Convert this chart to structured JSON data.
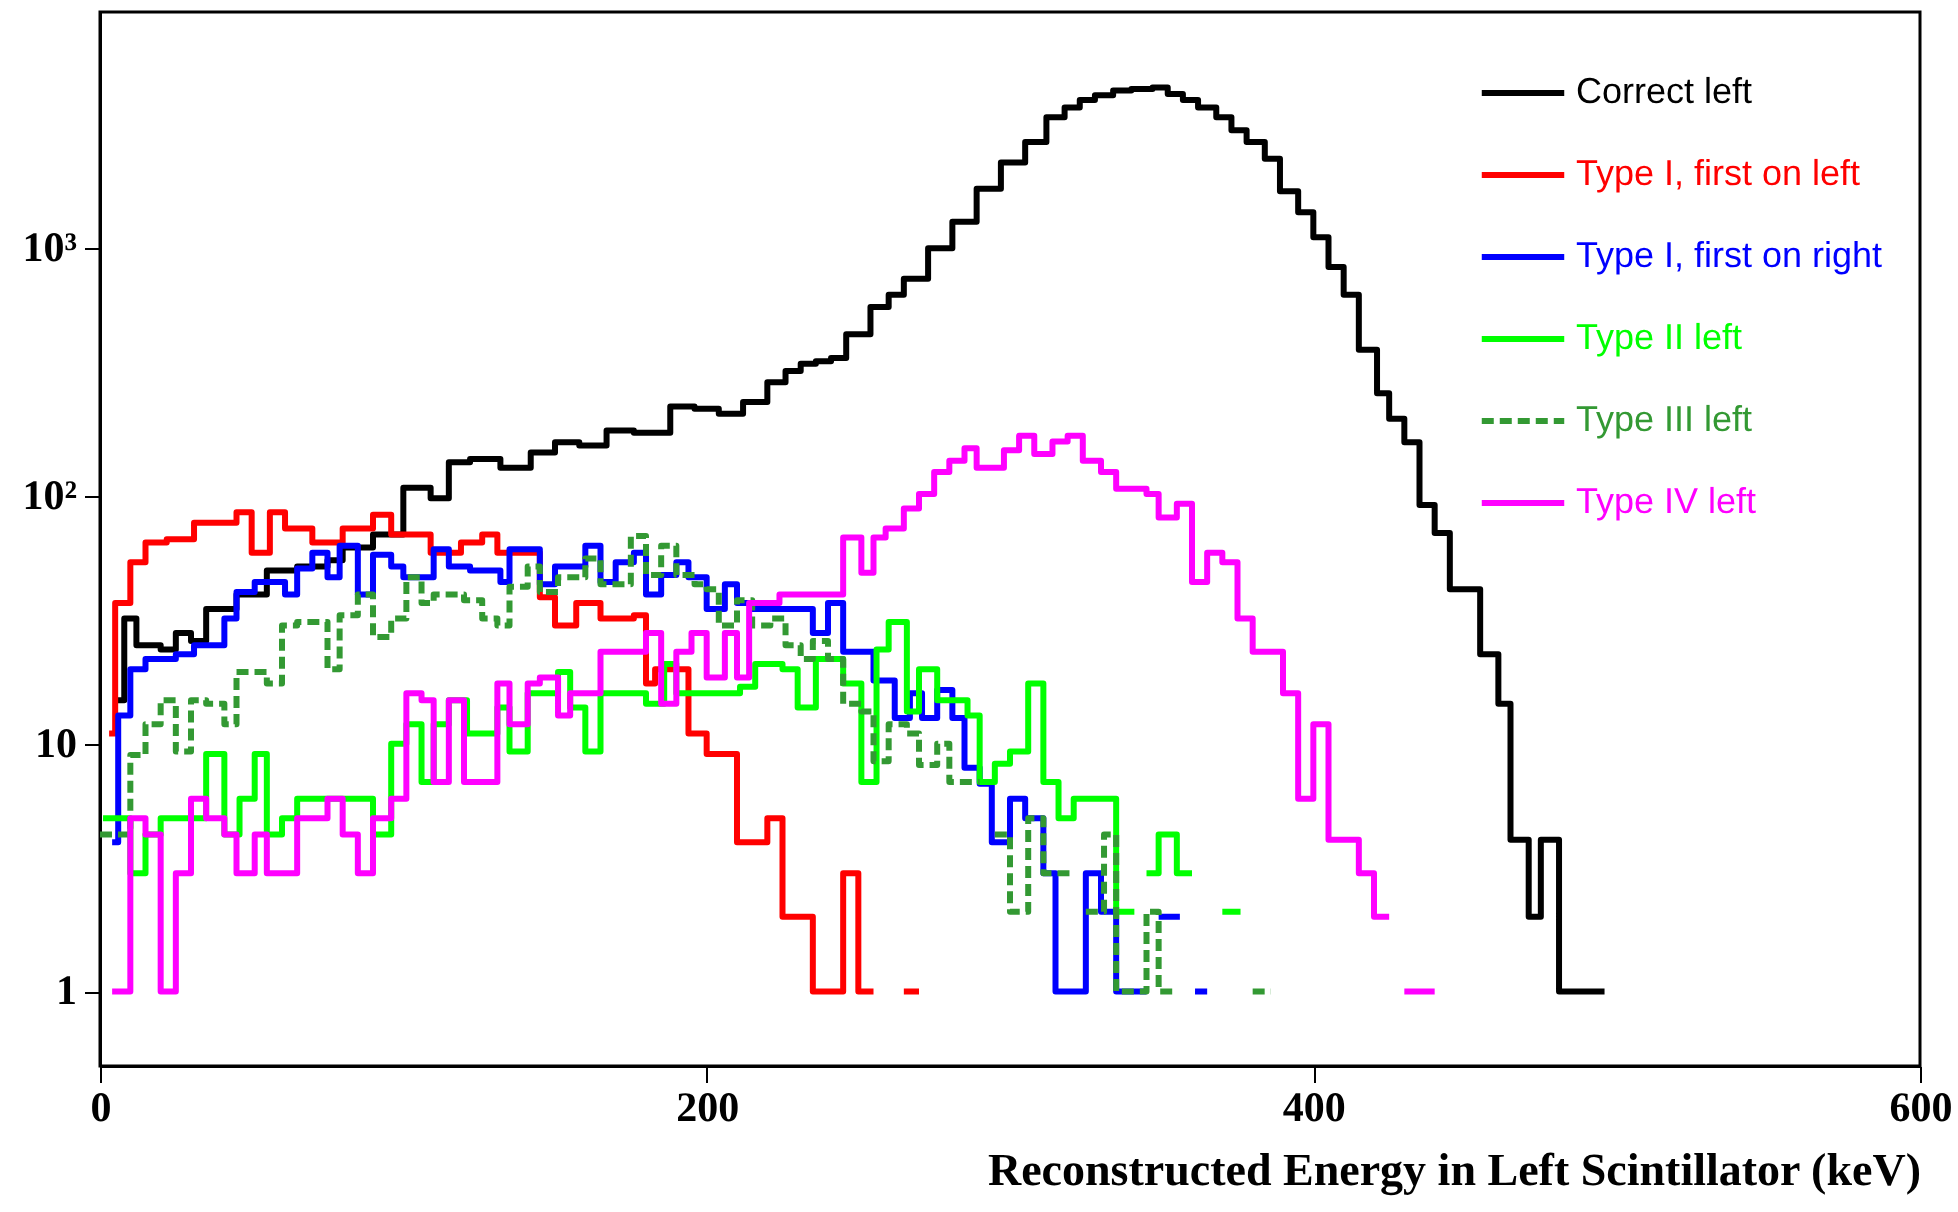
{
  "chart_data": {
    "type": "step",
    "xlabel": "Reconstructed Energy in Left Scintillator (keV)",
    "log": "y",
    "grid": false,
    "legend": "top right",
    "xlim": [
      0,
      600
    ],
    "xticks": [
      0,
      200,
      400,
      600
    ],
    "ylim": [
      0.5,
      9000
    ],
    "yticks": [
      1,
      10,
      {
        "value": 100,
        "label": "10²"
      },
      {
        "value": 1000,
        "label": "10³"
      }
    ],
    "series": [
      {
        "name": "Correct left",
        "color": "#000000",
        "x": [
          5,
          8,
          12,
          20,
          25,
          30,
          35,
          45,
          55,
          65,
          75,
          80,
          90,
          100,
          109,
          115,
          122,
          132,
          142,
          150,
          158,
          167,
          176,
          188,
          196,
          204,
          212,
          220,
          226,
          231,
          236,
          241,
          246,
          254,
          260,
          265,
          273,
          281,
          289,
          297,
          305,
          312,
          318,
          323,
          328,
          334,
          340,
          347,
          352,
          357,
          362,
          368,
          373,
          378,
          384,
          389,
          395,
          400,
          405,
          410,
          415,
          421,
          425,
          430,
          435,
          440,
          445,
          455,
          461,
          465,
          471,
          475,
          481,
          496
        ],
        "values": [
          15,
          32,
          25,
          24,
          28,
          26,
          35,
          40,
          50,
          52,
          55,
          62,
          70,
          108,
          98,
          137,
          141,
          130,
          150,
          165,
          160,
          184,
          180,
          230,
          225,
          215,
          240,
          288,
          320,
          342,
          350,
          361,
          450,
          580,
          650,
          754,
          1000,
          1280,
          1740,
          2220,
          2690,
          3380,
          3700,
          3970,
          4150,
          4340,
          4400,
          4460,
          4200,
          3970,
          3700,
          3380,
          3000,
          2690,
          2300,
          1700,
          1400,
          1110,
          840,
          650,
          390,
          260,
          205,
          165,
          92,
          71,
          42,
          23,
          14.5,
          4.1,
          2.0,
          4.1,
          1.0,
          1.0
        ]
      },
      {
        "name": "Type I, first on left",
        "color": "#ff0000",
        "x": [
          3,
          5,
          10,
          15,
          22,
          31,
          45,
          50,
          56,
          61,
          70,
          80,
          90,
          96,
          109,
          119,
          126,
          131,
          145,
          150,
          157,
          165,
          176,
          180,
          183,
          194,
          200,
          210,
          220,
          225,
          235,
          245,
          250,
          255,
          null,
          265,
          270
        ],
        "values": [
          11,
          37,
          54,
          65,
          67,
          78,
          86,
          59,
          86,
          74,
          65,
          74,
          84,
          70,
          59,
          65,
          70,
          59,
          39,
          30,
          37,
          32,
          33,
          17.5,
          20,
          11,
          9.1,
          4.0,
          5.0,
          2.0,
          1,
          3.0,
          1,
          1,
          null,
          1,
          1
        ]
      },
      {
        "name": "Type I, first on right",
        "color": "#0000ff",
        "x": [
          4,
          6,
          10,
          15,
          25,
          31,
          41,
          45,
          51,
          61,
          65,
          70,
          75,
          79,
          85,
          90,
          96,
          100,
          110,
          115,
          122,
          132,
          135,
          145,
          150,
          160,
          165,
          170,
          176,
          180,
          185,
          190,
          194,
          200,
          206,
          210,
          215,
          235,
          240,
          245,
          255,
          262,
          267,
          271,
          276,
          281,
          285,
          290,
          294,
          300,
          305,
          311,
          315,
          325,
          330,
          335,
          345,
          null,
          349,
          356,
          null,
          361,
          365
        ],
        "values": [
          4.0,
          13,
          20,
          22,
          23,
          25,
          32,
          41,
          45,
          40,
          51,
          59,
          47,
          63,
          40,
          58,
          52,
          47,
          61,
          52,
          50,
          45,
          61,
          44,
          52,
          63,
          45,
          54,
          59,
          40,
          48,
          54,
          47,
          35,
          44,
          37,
          35,
          28,
          37,
          23.5,
          18,
          12.7,
          16,
          12.7,
          16.5,
          12.7,
          8.0,
          6.9,
          4.0,
          6.0,
          5.0,
          3.0,
          1,
          3,
          2.1,
          1,
          1,
          null,
          2,
          2,
          null,
          1,
          1
        ]
      },
      {
        "name": "Type II left",
        "color": "#00ff00",
        "x": [
          1,
          10,
          15,
          20,
          35,
          41,
          46,
          51,
          55,
          60,
          65,
          90,
          96,
          101,
          106,
          110,
          115,
          121,
          131,
          135,
          141,
          151,
          155,
          160,
          165,
          180,
          186,
          190,
          196,
          211,
          216,
          225,
          230,
          236,
          245,
          251,
          256,
          260,
          266,
          270,
          276,
          280,
          286,
          290,
          295,
          300,
          306,
          311,
          316,
          321,
          335,
          341,
          null,
          345,
          349,
          355,
          360,
          null,
          370,
          376
        ],
        "values": [
          5,
          3.0,
          4.3,
          5,
          9.1,
          4.3,
          6,
          9.1,
          4.3,
          5,
          6,
          4.3,
          10,
          12,
          7,
          12,
          15,
          11,
          14,
          9.3,
          16,
          19.5,
          14,
          9.3,
          16,
          14.5,
          21,
          16,
          16,
          17,
          21,
          20,
          14,
          22,
          17.5,
          7,
          24,
          31,
          13.5,
          20,
          15,
          15,
          13,
          7,
          8.3,
          9.3,
          17.5,
          7,
          5,
          6,
          2.1,
          2.1,
          null,
          3,
          4.3,
          3,
          3,
          null,
          2.1,
          2.1
        ]
      },
      {
        "name": "Type III left",
        "color": "#339933",
        "line_style": "dashed",
        "x": [
          0,
          10,
          15,
          20,
          25,
          30,
          35,
          41,
          45,
          51,
          55,
          60,
          65,
          70,
          75,
          79,
          85,
          90,
          96,
          101,
          106,
          110,
          120,
          126,
          131,
          135,
          141,
          145,
          151,
          160,
          165,
          170,
          175,
          180,
          185,
          190,
          196,
          200,
          204,
          210,
          215,
          221,
          226,
          231,
          235,
          240,
          245,
          251,
          255,
          260,
          266,
          270,
          276,
          280,
          290,
          null,
          295,
          300,
          306,
          311,
          320,
          null,
          325,
          331,
          335,
          345,
          349,
          355,
          null,
          380,
          386
        ],
        "values": [
          4.3,
          9,
          12,
          15,
          9.3,
          15,
          14.5,
          12,
          19.5,
          19.5,
          17.5,
          30,
          31,
          31,
          20,
          33,
          40,
          27,
          32,
          47,
          37,
          40,
          38,
          32,
          30,
          43,
          52,
          41,
          47,
          56,
          44,
          44,
          69,
          48,
          63,
          48,
          44,
          42,
          30,
          38,
          30,
          32,
          25,
          22,
          26,
          22,
          14.5,
          13.5,
          8.5,
          12,
          11,
          8.2,
          10,
          7,
          7,
          null,
          4.3,
          2.1,
          5,
          3,
          3,
          null,
          2.1,
          4.3,
          1,
          2.1,
          1,
          1,
          null,
          1,
          1
        ]
      },
      {
        "name": "Type IV left",
        "color": "#ff00ff",
        "x": [
          4,
          10,
          15,
          20,
          25,
          30,
          35,
          41,
          45,
          51,
          55,
          65,
          75,
          80,
          85,
          90,
          96,
          101,
          106,
          110,
          115,
          120,
          131,
          135,
          141,
          145,
          151,
          155,
          165,
          180,
          185,
          190,
          195,
          200,
          206,
          210,
          214,
          224,
          245,
          251,
          255,
          259,
          265,
          270,
          275,
          280,
          285,
          289,
          298,
          303,
          308,
          314,
          319,
          324,
          330,
          335,
          345,
          349,
          355,
          360,
          365,
          370,
          375,
          380,
          390,
          395,
          400,
          405,
          415,
          420,
          425,
          null,
          430,
          440
        ],
        "values": [
          1,
          5,
          4.3,
          1,
          3,
          6,
          5,
          4.3,
          3,
          4.3,
          3,
          5,
          6,
          4.3,
          3,
          5,
          6,
          16,
          15,
          7,
          15,
          7,
          17.5,
          12,
          17.5,
          18.5,
          13,
          16,
          23.5,
          28,
          14.5,
          23.5,
          28,
          18.5,
          28,
          18.5,
          37,
          40,
          68,
          49,
          68,
          74,
          89,
          102,
          125,
          139,
          156,
          130,
          153,
          175,
          148,
          166,
          175,
          139,
          125,
          107,
          102,
          82,
          93,
          45,
          59,
          54,
          32,
          23.5,
          16,
          6,
          12,
          4.1,
          3,
          2,
          2,
          null,
          1,
          1
        ]
      }
    ]
  }
}
